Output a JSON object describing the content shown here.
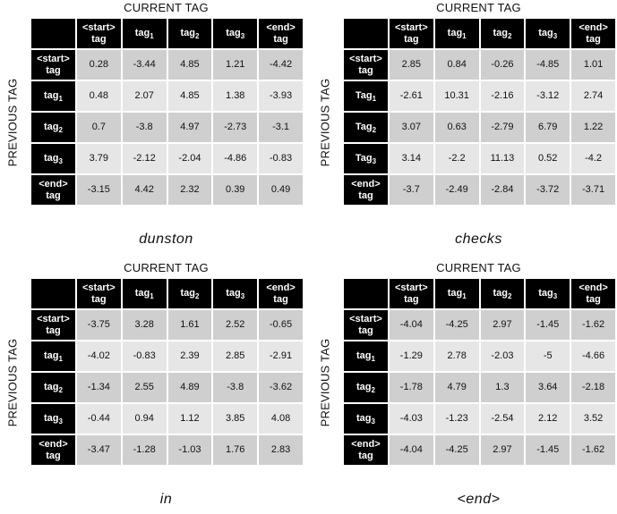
{
  "axis": {
    "current": "CURRENT TAG",
    "previous": "PREVIOUS TAG"
  },
  "col_headers": [
    {
      "top": "<start>",
      "bottom": "tag",
      "sub": ""
    },
    {
      "top": "tag",
      "bottom": "",
      "sub": "1"
    },
    {
      "top": "tag",
      "bottom": "",
      "sub": "2"
    },
    {
      "top": "tag",
      "bottom": "",
      "sub": "3"
    },
    {
      "top": "<end>",
      "bottom": "tag",
      "sub": ""
    }
  ],
  "panels": [
    {
      "word": "dunston",
      "row_headers": [
        {
          "top": "<start>",
          "bottom": "tag",
          "sub": ""
        },
        {
          "top": "tag",
          "bottom": "",
          "sub": "1"
        },
        {
          "top": "tag",
          "bottom": "",
          "sub": "2"
        },
        {
          "top": "tag",
          "bottom": "",
          "sub": "3"
        },
        {
          "top": "<end>",
          "bottom": "tag",
          "sub": ""
        }
      ],
      "rows": [
        [
          "0.28",
          "-3.44",
          "4.85",
          "1.21",
          "-4.42"
        ],
        [
          "0.48",
          "2.07",
          "4.85",
          "1.38",
          "-3.93"
        ],
        [
          "0.7",
          "-3.8",
          "4.97",
          "-2.73",
          "-3.1"
        ],
        [
          "3.79",
          "-2.12",
          "-2.04",
          "-4.86",
          "-0.83"
        ],
        [
          "-3.15",
          "4.42",
          "2.32",
          "0.39",
          "0.49"
        ]
      ]
    },
    {
      "word": "checks",
      "row_headers": [
        {
          "top": "<start>",
          "bottom": "tag",
          "sub": ""
        },
        {
          "top": "Tag",
          "bottom": "",
          "sub": "1"
        },
        {
          "top": "Tag",
          "bottom": "",
          "sub": "2"
        },
        {
          "top": "Tag",
          "bottom": "",
          "sub": "3"
        },
        {
          "top": "<end>",
          "bottom": "tag",
          "sub": ""
        }
      ],
      "rows": [
        [
          "2.85",
          "0.84",
          "-0.26",
          "-4.85",
          "1.01"
        ],
        [
          "-2.61",
          "10.31",
          "-2.16",
          "-3.12",
          "2.74"
        ],
        [
          "3.07",
          "0.63",
          "-2.79",
          "6.79",
          "1.22"
        ],
        [
          "3.14",
          "-2.2",
          "11.13",
          "0.52",
          "-4.2"
        ],
        [
          "-3.7",
          "-2.49",
          "-2.84",
          "-3.72",
          "-3.71"
        ]
      ]
    },
    {
      "word": "in",
      "row_headers": [
        {
          "top": "<start>",
          "bottom": "tag",
          "sub": ""
        },
        {
          "top": "tag",
          "bottom": "",
          "sub": "1"
        },
        {
          "top": "tag",
          "bottom": "",
          "sub": "2"
        },
        {
          "top": "tag",
          "bottom": "",
          "sub": "3"
        },
        {
          "top": "<end>",
          "bottom": "tag",
          "sub": ""
        }
      ],
      "rows": [
        [
          "-3.75",
          "3.28",
          "1.61",
          "2.52",
          "-0.65"
        ],
        [
          "-4.02",
          "-0.83",
          "2.39",
          "2.85",
          "-2.91"
        ],
        [
          "-1.34",
          "2.55",
          "4.89",
          "-3.8",
          "-3.62"
        ],
        [
          "-0.44",
          "0.94",
          "1.12",
          "3.85",
          "4.08"
        ],
        [
          "-3.47",
          "-1.28",
          "-1.03",
          "1.76",
          "2.83"
        ]
      ]
    },
    {
      "word": "<end>",
      "row_headers": [
        {
          "top": "<start>",
          "bottom": "tag",
          "sub": ""
        },
        {
          "top": "tag",
          "bottom": "",
          "sub": "1"
        },
        {
          "top": "tag",
          "bottom": "",
          "sub": "2"
        },
        {
          "top": "tag",
          "bottom": "",
          "sub": "3"
        },
        {
          "top": "<end>",
          "bottom": "tag",
          "sub": ""
        }
      ],
      "rows": [
        [
          "-4.04",
          "-4.25",
          "2.97",
          "-1.45",
          "-1.62"
        ],
        [
          "-1.29",
          "2.78",
          "-2.03",
          "-5",
          "-4.66"
        ],
        [
          "-1.78",
          "4.79",
          "1.3",
          "3.64",
          "-2.18"
        ],
        [
          "-4.03",
          "-1.23",
          "-2.54",
          "2.12",
          "3.52"
        ],
        [
          "-4.04",
          "-4.25",
          "2.97",
          "-1.45",
          "-1.62"
        ]
      ]
    }
  ]
}
